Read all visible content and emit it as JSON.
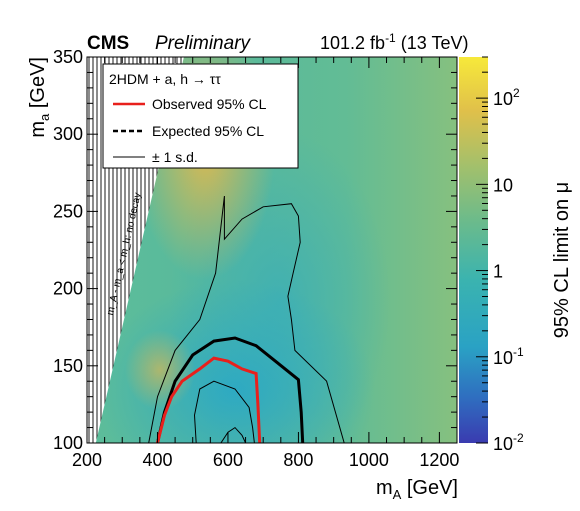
{
  "header": {
    "experiment": "CMS",
    "status": "Preliminary",
    "lumi_value": "101.2 fb",
    "lumi_exp": "-1",
    "energy": "(13 TeV)"
  },
  "colors": {
    "observed": "#e8201c",
    "expected": "#000000",
    "band": "#000000",
    "palette": [
      "#3a3bb0",
      "#2f6fc0",
      "#2aa2c4",
      "#3ab3b0",
      "#6dbb8a",
      "#a4c06b",
      "#e0c04a",
      "#f7e93a"
    ]
  },
  "chart_data": {
    "type": "heatmap",
    "title": "",
    "xlabel": "m_A [GeV]",
    "ylabel": "m_a [GeV]",
    "zlabel": "95% CL limit on μ",
    "xlim": [
      200,
      1250
    ],
    "ylim": [
      100,
      350
    ],
    "zlim": [
      0.01,
      300
    ],
    "zscale": "log",
    "x_ticks": [
      200,
      400,
      600,
      800,
      1000,
      1200
    ],
    "y_ticks": [
      100,
      150,
      200,
      250,
      300,
      350
    ],
    "z_ticks": [
      {
        "base": "10",
        "exp": "-2",
        "value": 0.01
      },
      {
        "base": "10",
        "exp": "-1",
        "value": 0.1
      },
      {
        "base": "1",
        "exp": "",
        "value": 1
      },
      {
        "base": "10",
        "exp": "",
        "value": 10
      },
      {
        "base": "10",
        "exp": "2",
        "value": 100
      }
    ],
    "excluded_region_label": "m_A - m_a < m_h: no decay",
    "legend": {
      "title": "2HDM + a, h → ττ",
      "placement": "top-left",
      "entries": [
        "Observed 95% CL",
        "Expected 95% CL",
        "± 1 s.d."
      ]
    },
    "observed": [
      [
        400,
        100
      ],
      [
        420,
        118
      ],
      [
        440,
        130
      ],
      [
        470,
        140
      ],
      [
        520,
        148
      ],
      [
        560,
        155
      ],
      [
        600,
        153
      ],
      [
        640,
        148
      ],
      [
        680,
        145
      ],
      [
        685,
        125
      ],
      [
        690,
        100
      ]
    ],
    "expected": [
      [
        400,
        100
      ],
      [
        420,
        120
      ],
      [
        450,
        140
      ],
      [
        500,
        157
      ],
      [
        560,
        166
      ],
      [
        620,
        168
      ],
      [
        680,
        163
      ],
      [
        740,
        152
      ],
      [
        800,
        141
      ],
      [
        808,
        120
      ],
      [
        812,
        100
      ]
    ],
    "band_outer": [
      [
        375,
        100
      ],
      [
        400,
        130
      ],
      [
        450,
        160
      ],
      [
        520,
        180
      ],
      [
        565,
        210
      ],
      [
        580,
        240
      ],
      [
        590,
        260
      ],
      [
        590,
        232
      ],
      [
        640,
        245
      ],
      [
        700,
        253
      ],
      [
        780,
        255
      ],
      [
        800,
        247
      ],
      [
        805,
        230
      ],
      [
        785,
        210
      ],
      [
        770,
        195
      ],
      [
        780,
        180
      ],
      [
        790,
        160
      ],
      [
        880,
        140
      ],
      [
        930,
        100
      ]
    ],
    "band_inner": [
      [
        510,
        100
      ],
      [
        505,
        118
      ],
      [
        520,
        135
      ],
      [
        560,
        140
      ],
      [
        620,
        135
      ],
      [
        660,
        123
      ],
      [
        670,
        110
      ],
      [
        675,
        100
      ]
    ],
    "band_dip": [
      [
        580,
        100
      ],
      [
        600,
        107
      ],
      [
        620,
        110
      ],
      [
        640,
        105
      ],
      [
        650,
        100
      ]
    ]
  }
}
